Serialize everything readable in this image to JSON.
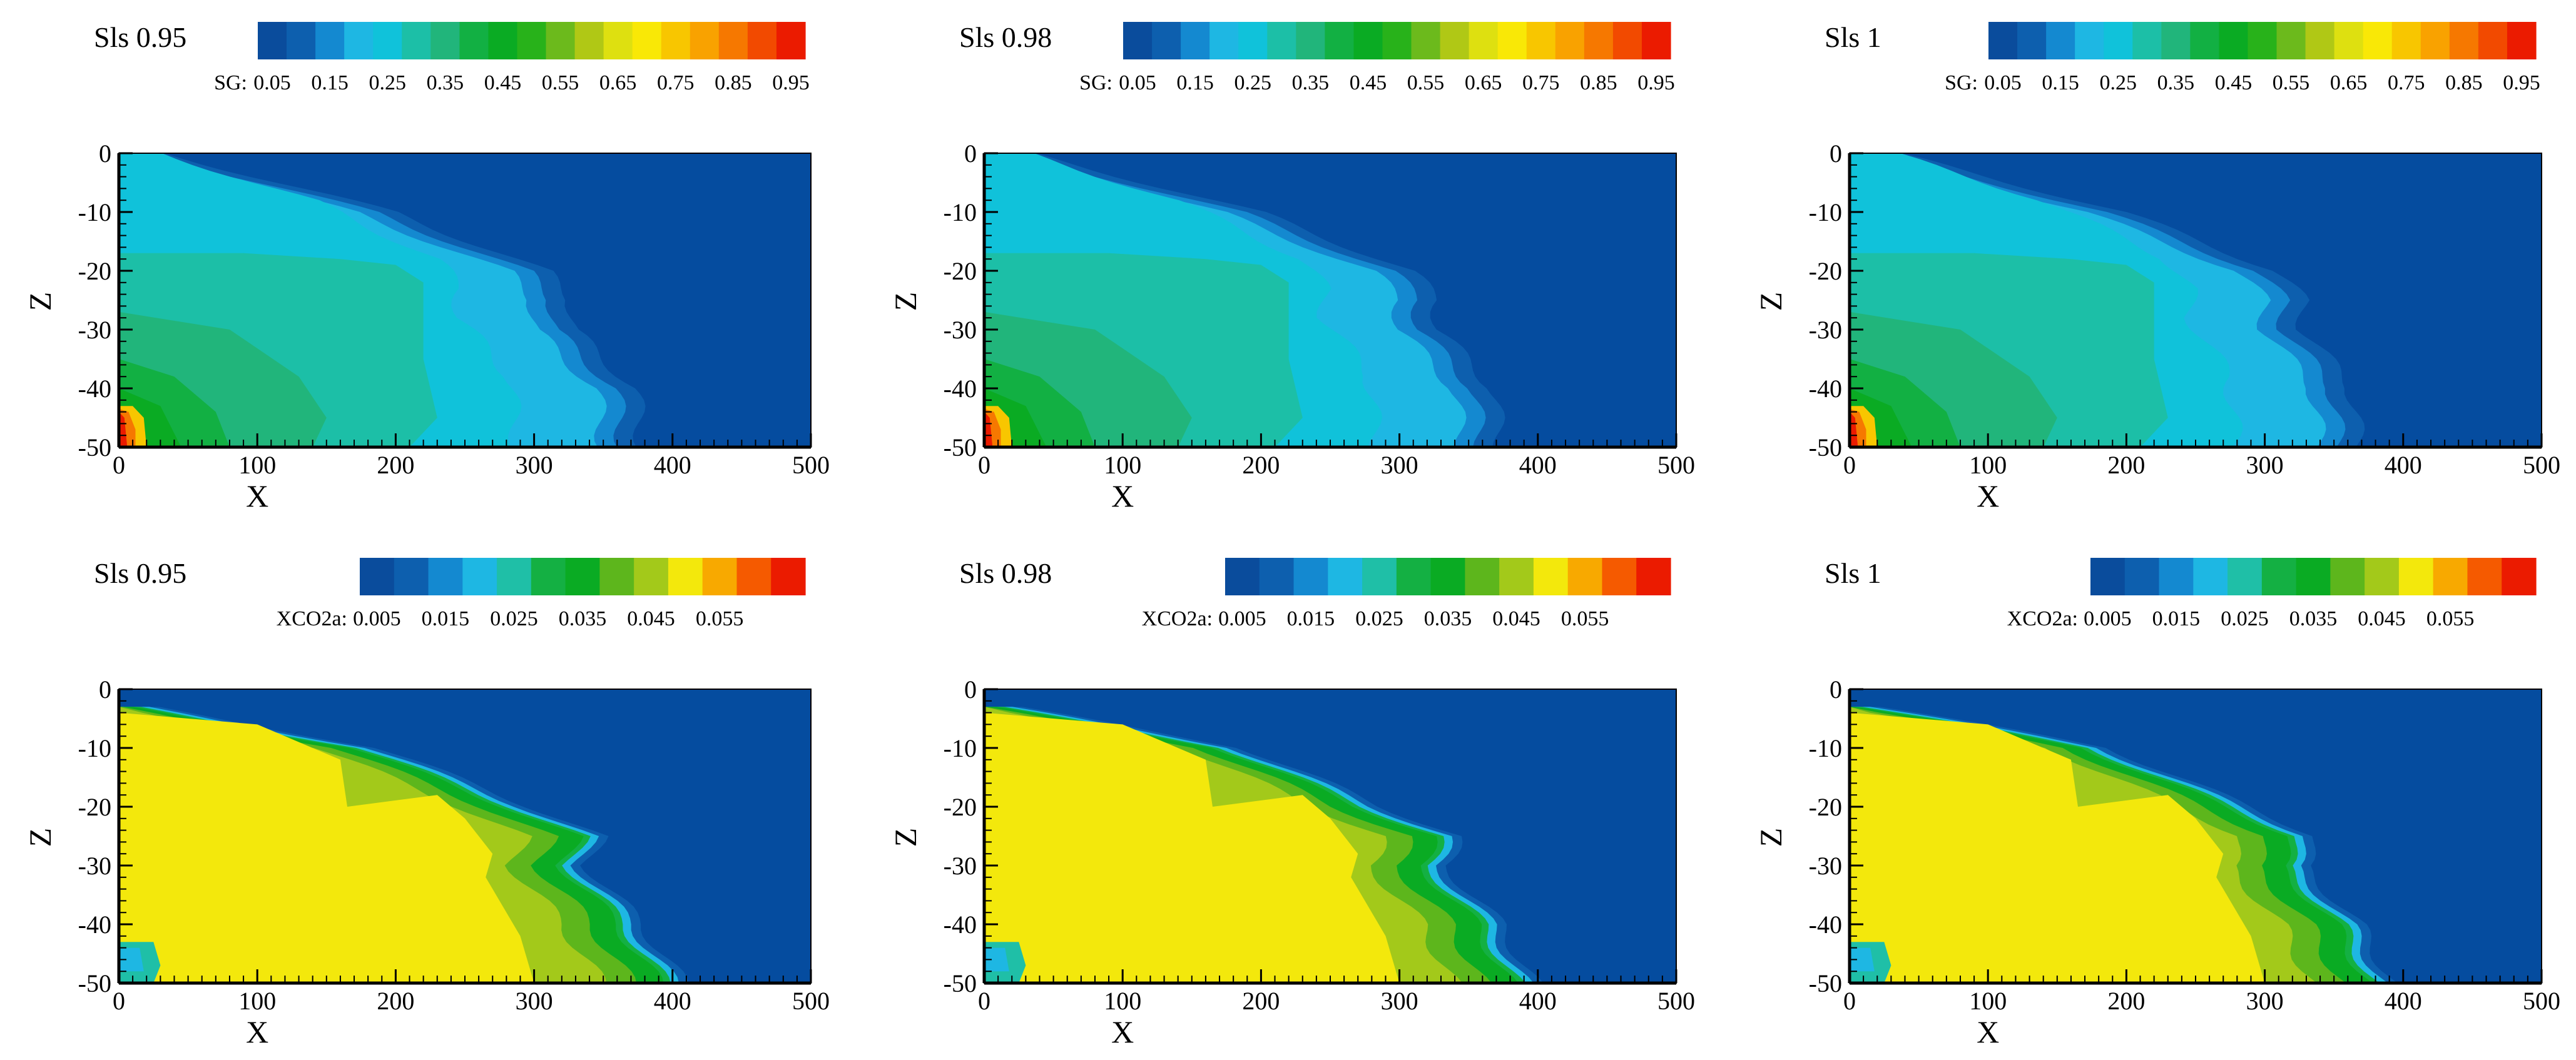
{
  "chart_data": [
    {
      "type": "heatmap",
      "title": "Sls 0.95",
      "variable": "SG",
      "legend_title": "SG:",
      "xlabel": "X",
      "ylabel": "Z",
      "xlim": [
        0,
        500
      ],
      "ylim": [
        -50,
        0
      ],
      "xticks": [
        0,
        100,
        200,
        300,
        400,
        500
      ],
      "yticks": [
        0,
        -10,
        -20,
        -30,
        -40,
        -50
      ],
      "levels": [
        0.05,
        0.1,
        0.15,
        0.2,
        0.25,
        0.3,
        0.35,
        0.4,
        0.45,
        0.5,
        0.55,
        0.6,
        0.65,
        0.7,
        0.75,
        0.8,
        0.85,
        0.9,
        0.95
      ],
      "level_labels": [
        "0.05",
        "0.15",
        "0.25",
        "0.35",
        "0.45",
        "0.55",
        "0.65",
        "0.75",
        "0.85",
        "0.95"
      ],
      "front_depth": [
        0,
        -10,
        -20,
        -25,
        -30,
        -40,
        -50
      ],
      "front_x": [
        5,
        170,
        280,
        300,
        300,
        345,
        350
      ],
      "background_value": 0.05,
      "plume_value": 0.25
    },
    {
      "type": "heatmap",
      "title": "Sls 0.98",
      "variable": "SG",
      "legend_title": "SG:",
      "xlabel": "X",
      "ylabel": "Z",
      "xlim": [
        0,
        500
      ],
      "ylim": [
        -50,
        0
      ],
      "xticks": [
        0,
        100,
        200,
        300,
        400,
        500
      ],
      "yticks": [
        0,
        -10,
        -20,
        -30,
        -40,
        -50
      ],
      "levels": [
        0.05,
        0.1,
        0.15,
        0.2,
        0.25,
        0.3,
        0.35,
        0.4,
        0.45,
        0.5,
        0.55,
        0.6,
        0.65,
        0.7,
        0.75,
        0.8,
        0.85,
        0.9,
        0.95
      ],
      "level_labels": [
        "0.05",
        "0.15",
        "0.25",
        "0.35",
        "0.45",
        "0.55",
        "0.65",
        "0.75",
        "0.85",
        "0.95"
      ],
      "front_depth": [
        0,
        -10,
        -20,
        -25,
        -30,
        -40,
        -50
      ],
      "front_x": [
        5,
        170,
        280,
        300,
        300,
        340,
        345
      ],
      "background_value": 0.05,
      "plume_value": 0.25
    },
    {
      "type": "heatmap",
      "title": "Sls 1",
      "variable": "SG",
      "legend_title": "SG:",
      "xlabel": "X",
      "ylabel": "Z",
      "xlim": [
        0,
        500
      ],
      "ylim": [
        -50,
        0
      ],
      "xticks": [
        0,
        100,
        200,
        300,
        400,
        500
      ],
      "yticks": [
        0,
        -10,
        -20,
        -30,
        -40,
        -50
      ],
      "levels": [
        0.05,
        0.1,
        0.15,
        0.2,
        0.25,
        0.3,
        0.35,
        0.4,
        0.45,
        0.5,
        0.55,
        0.6,
        0.65,
        0.7,
        0.75,
        0.8,
        0.85,
        0.9,
        0.95
      ],
      "level_labels": [
        "0.05",
        "0.15",
        "0.25",
        "0.35",
        "0.45",
        "0.55",
        "0.65",
        "0.75",
        "0.85",
        "0.95"
      ],
      "front_depth": [
        0,
        -10,
        -20,
        -25,
        -30,
        -40,
        -50
      ],
      "front_x": [
        5,
        170,
        280,
        300,
        300,
        335,
        340
      ],
      "background_value": 0.05,
      "plume_value": 0.25
    },
    {
      "type": "heatmap",
      "title": "Sls 0.95",
      "variable": "XCO2a",
      "legend_title": "XCO2a:",
      "xlabel": "X",
      "ylabel": "Z",
      "xlim": [
        0,
        500
      ],
      "ylim": [
        -50,
        0
      ],
      "xticks": [
        0,
        100,
        200,
        300,
        400,
        500
      ],
      "yticks": [
        0,
        -10,
        -20,
        -30,
        -40,
        -50
      ],
      "levels": [
        0.005,
        0.01,
        0.015,
        0.02,
        0.025,
        0.03,
        0.035,
        0.04,
        0.045,
        0.05,
        0.055,
        0.06
      ],
      "level_labels": [
        "0.005",
        "0.015",
        "0.025",
        "0.035",
        "0.045",
        "0.055"
      ],
      "front_depth": [
        -3,
        -10,
        -20,
        -25,
        -30,
        -40,
        -50
      ],
      "front_x": [
        5,
        170,
        280,
        330,
        320,
        360,
        390
      ],
      "background_value": 0.005,
      "plume_value": 0.05
    },
    {
      "type": "heatmap",
      "title": "Sls 0.98",
      "variable": "XCO2a",
      "legend_title": "XCO2a:",
      "xlabel": "X",
      "ylabel": "Z",
      "xlim": [
        0,
        500
      ],
      "ylim": [
        -50,
        0
      ],
      "xticks": [
        0,
        100,
        200,
        300,
        400,
        500
      ],
      "yticks": [
        0,
        -10,
        -20,
        -30,
        -40,
        -50
      ],
      "levels": [
        0.005,
        0.01,
        0.015,
        0.02,
        0.025,
        0.03,
        0.035,
        0.04,
        0.045,
        0.05,
        0.055,
        0.06
      ],
      "level_labels": [
        "0.005",
        "0.015",
        "0.025",
        "0.035",
        "0.045",
        "0.055"
      ],
      "front_depth": [
        -3,
        -10,
        -20,
        -25,
        -30,
        -40,
        -50
      ],
      "front_x": [
        5,
        170,
        270,
        325,
        315,
        355,
        380
      ],
      "background_value": 0.005,
      "plume_value": 0.05
    },
    {
      "type": "heatmap",
      "title": "Sls 1",
      "variable": "XCO2a",
      "legend_title": "XCO2a:",
      "xlabel": "X",
      "ylabel": "Z",
      "xlim": [
        0,
        500
      ],
      "ylim": [
        -50,
        0
      ],
      "xticks": [
        0,
        100,
        200,
        300,
        400,
        500
      ],
      "yticks": [
        0,
        -10,
        -20,
        -30,
        -40,
        -50
      ],
      "levels": [
        0.005,
        0.01,
        0.015,
        0.02,
        0.025,
        0.03,
        0.035,
        0.04,
        0.045,
        0.05,
        0.055,
        0.06
      ],
      "level_labels": [
        "0.005",
        "0.015",
        "0.025",
        "0.035",
        "0.045",
        "0.055"
      ],
      "front_depth": [
        -3,
        -10,
        -20,
        -25,
        -30,
        -40,
        -50
      ],
      "front_x": [
        5,
        170,
        270,
        320,
        310,
        350,
        375
      ],
      "background_value": 0.005,
      "plume_value": 0.05
    }
  ],
  "colors": {
    "SG": [
      "#0a4c9c",
      "#0d5fae",
      "#1489d0",
      "#1eb7e3",
      "#10c2da",
      "#1cbfa7",
      "#21b57b",
      "#12b043",
      "#0aab23",
      "#28b21a",
      "#6cba1c",
      "#b0c815",
      "#dee010",
      "#f9e806",
      "#f8c600",
      "#f9a200",
      "#f67800",
      "#f24a00",
      "#eb1b00"
    ],
    "XCO2a": [
      "#0a4c9c",
      "#0d5fae",
      "#1489d0",
      "#1eb7e3",
      "#1fbfa7",
      "#14b043",
      "#0aab23",
      "#5db61c",
      "#a3c91a",
      "#f3e80c",
      "#f8a900",
      "#f55a00",
      "#eb1b00"
    ],
    "background": "#054c9f"
  }
}
